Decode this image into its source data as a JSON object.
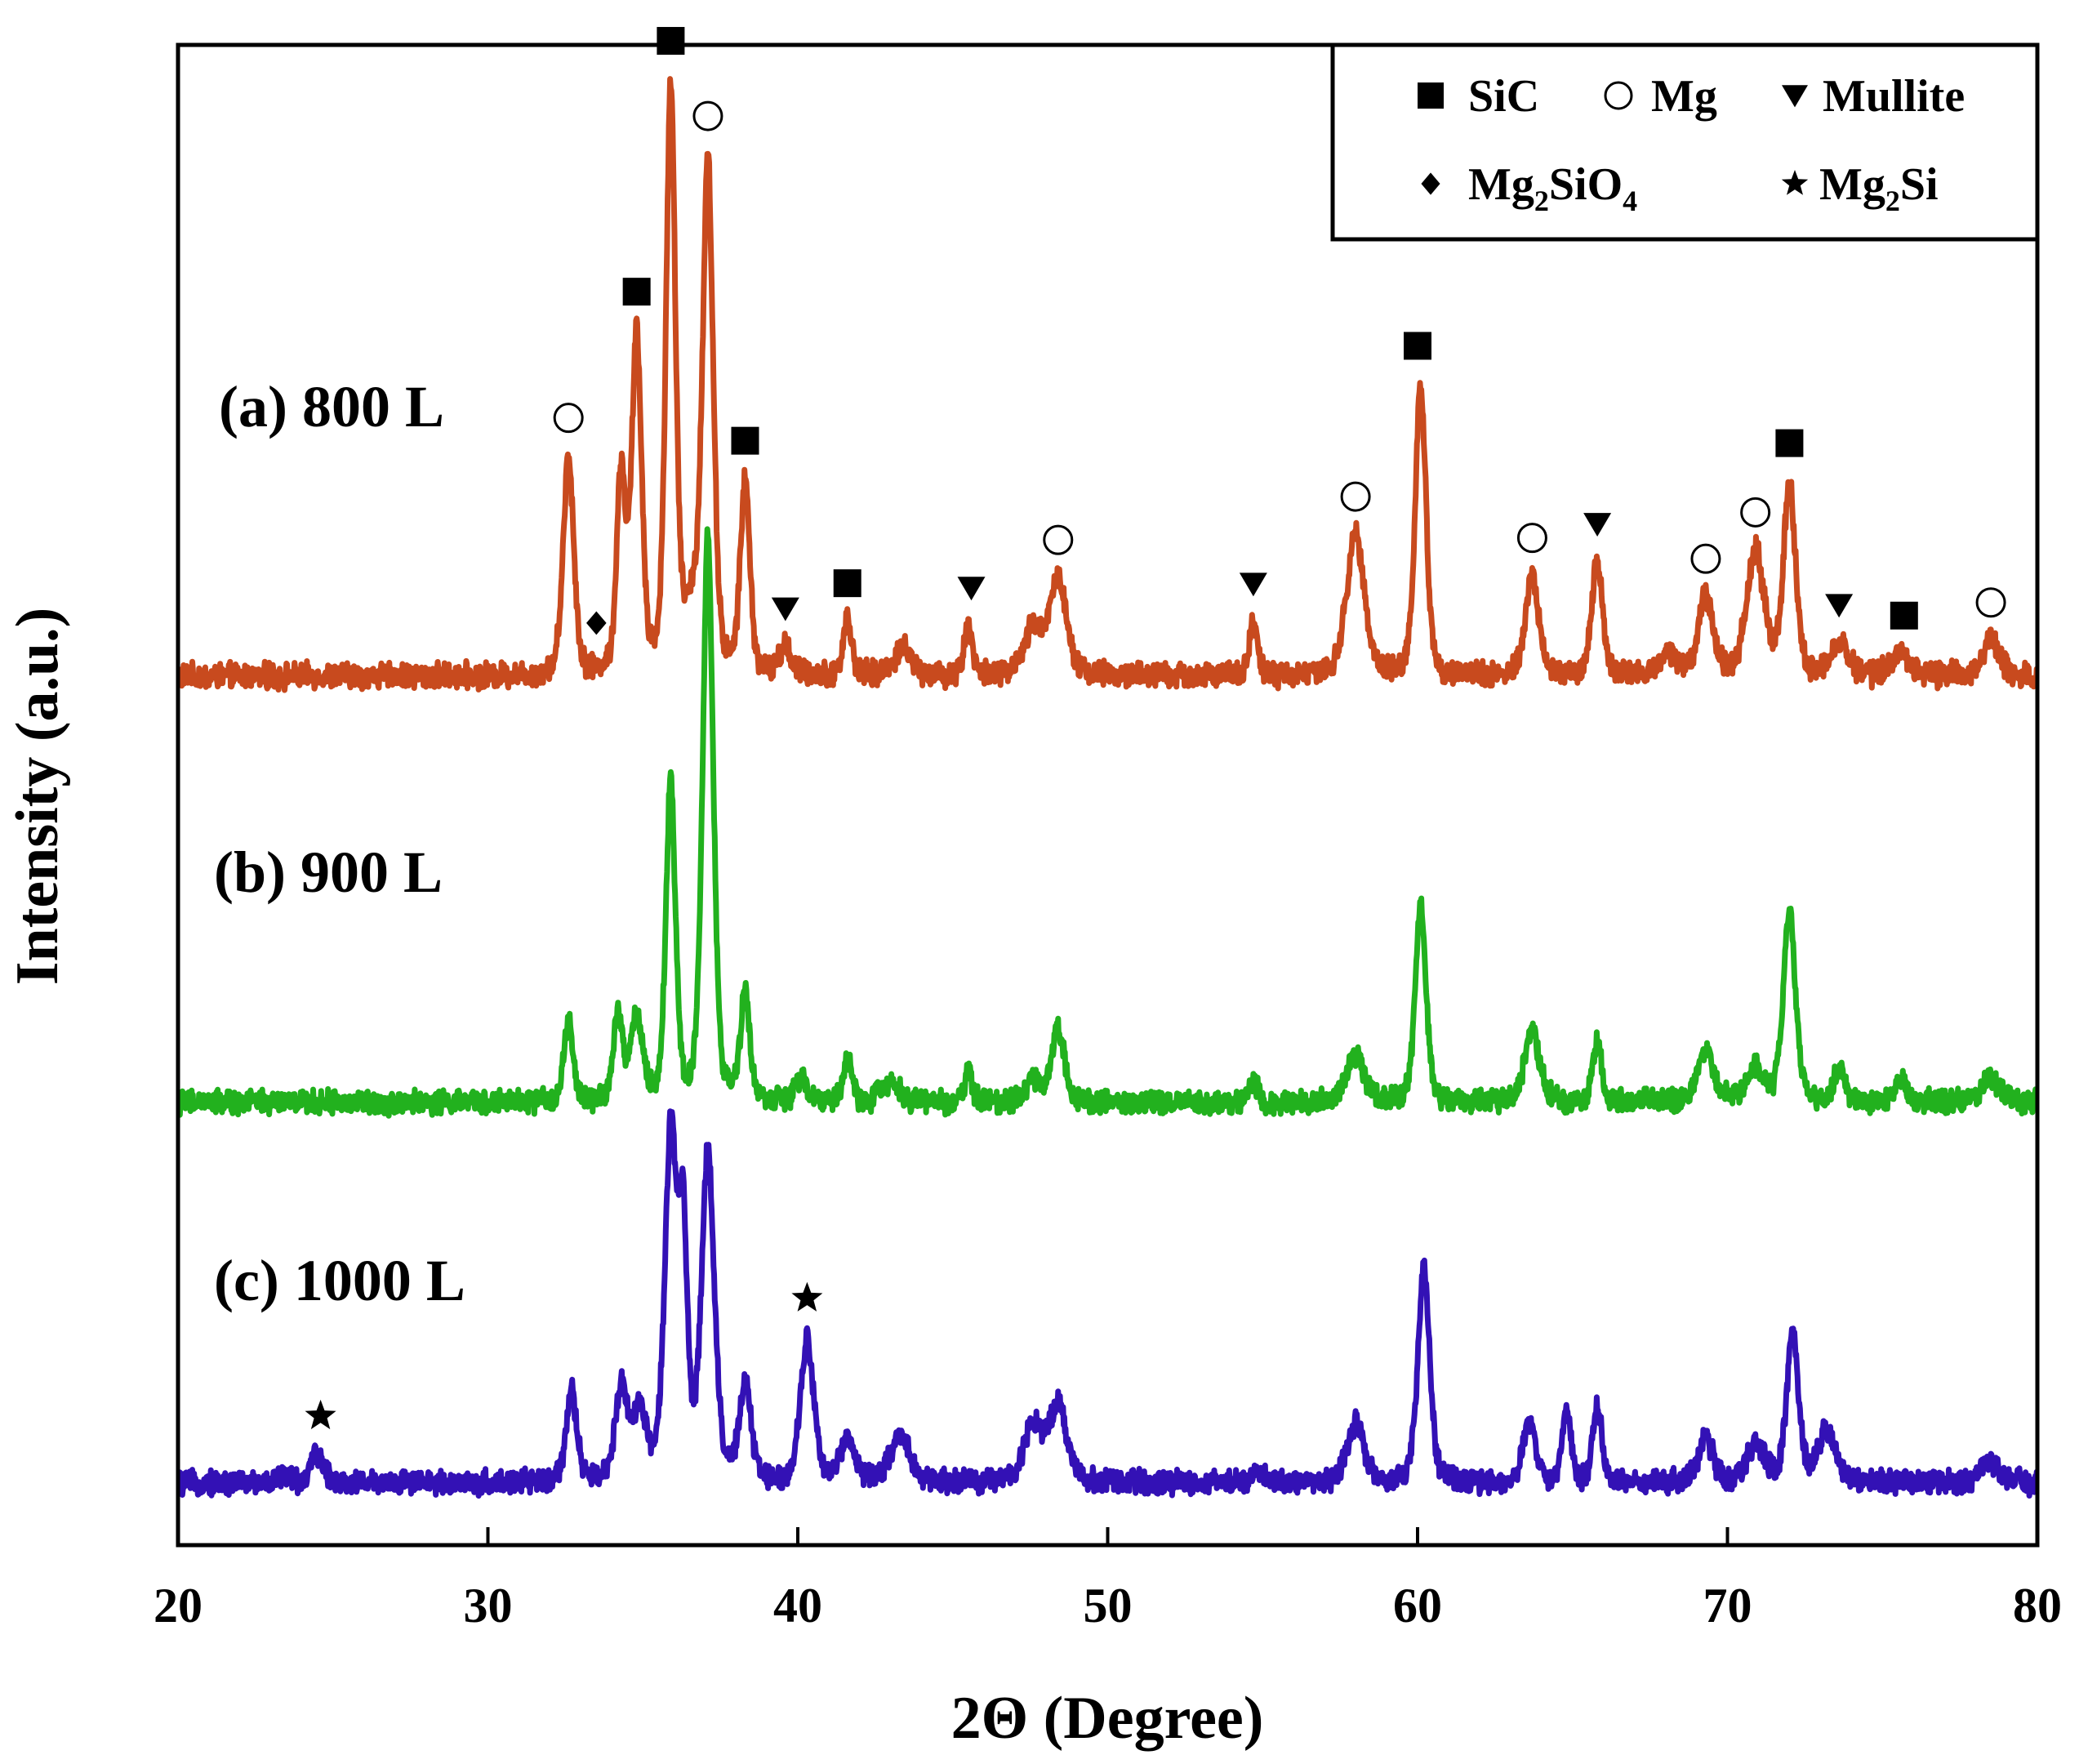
{
  "chart_data": {
    "type": "line",
    "title": "",
    "xlabel": "2Θ (Degree)",
    "ylabel": "Intensity (a.u.)",
    "xlim": [
      20,
      80
    ],
    "xticks": [
      20,
      30,
      40,
      50,
      60,
      70,
      80
    ],
    "yticks": [],
    "grid": false,
    "legend_position": "top-right",
    "legend": [
      {
        "symbol": "filled-square",
        "label": "SiC"
      },
      {
        "symbol": "open-circle",
        "label": "Mg"
      },
      {
        "symbol": "filled-down-triangle",
        "label": "Mullite"
      },
      {
        "symbol": "filled-diamond",
        "label": "Mg",
        "sub": "2",
        "label2": "SiO",
        "sub2": "4"
      },
      {
        "symbol": "filled-star",
        "label": "Mg",
        "sub": "2",
        "label2": "Si"
      }
    ],
    "series": [
      {
        "name": "(a) 800 L",
        "color": "#C84A1E",
        "baseline": 0,
        "peaks": [
          {
            "x": 32.6,
            "h": 0.48,
            "w": 0.18
          },
          {
            "x": 34.3,
            "h": 0.43,
            "w": 0.15
          },
          {
            "x": 34.8,
            "h": 0.73,
            "w": 0.17
          },
          {
            "x": 35.9,
            "h": 1.28,
            "w": 0.16
          },
          {
            "x": 36.6,
            "h": 0.12,
            "w": 0.3
          },
          {
            "x": 37.1,
            "h": 1.1,
            "w": 0.18
          },
          {
            "x": 38.3,
            "h": 0.42,
            "w": 0.16
          },
          {
            "x": 39.6,
            "h": 0.06,
            "w": 0.2
          },
          {
            "x": 41.6,
            "h": 0.12,
            "w": 0.15
          },
          {
            "x": 43.4,
            "h": 0.06,
            "w": 0.3
          },
          {
            "x": 45.5,
            "h": 0.11,
            "w": 0.14
          },
          {
            "x": 47.6,
            "h": 0.1,
            "w": 0.3
          },
          {
            "x": 48.4,
            "h": 0.21,
            "w": 0.3
          },
          {
            "x": 54.7,
            "h": 0.12,
            "w": 0.14
          },
          {
            "x": 58.0,
            "h": 0.31,
            "w": 0.3
          },
          {
            "x": 60.1,
            "h": 0.64,
            "w": 0.18
          },
          {
            "x": 63.7,
            "h": 0.22,
            "w": 0.22
          },
          {
            "x": 65.8,
            "h": 0.25,
            "w": 0.18
          },
          {
            "x": 68.1,
            "h": 0.05,
            "w": 0.3
          },
          {
            "x": 69.3,
            "h": 0.17,
            "w": 0.25
          },
          {
            "x": 70.9,
            "h": 0.27,
            "w": 0.3
          },
          {
            "x": 72.0,
            "h": 0.42,
            "w": 0.2
          },
          {
            "x": 73.6,
            "h": 0.07,
            "w": 0.3
          },
          {
            "x": 75.6,
            "h": 0.05,
            "w": 0.3
          },
          {
            "x": 78.5,
            "h": 0.08,
            "w": 0.3
          }
        ]
      },
      {
        "name": "(b) 900 L",
        "color": "#22B11E",
        "baseline": 0,
        "peaks": [
          {
            "x": 32.6,
            "h": 0.19,
            "w": 0.15
          },
          {
            "x": 34.2,
            "h": 0.2,
            "w": 0.16
          },
          {
            "x": 34.8,
            "h": 0.2,
            "w": 0.2
          },
          {
            "x": 35.9,
            "h": 0.75,
            "w": 0.16
          },
          {
            "x": 37.1,
            "h": 1.33,
            "w": 0.18
          },
          {
            "x": 38.3,
            "h": 0.25,
            "w": 0.16
          },
          {
            "x": 40.1,
            "h": 0.05,
            "w": 0.2
          },
          {
            "x": 41.6,
            "h": 0.1,
            "w": 0.15
          },
          {
            "x": 43.0,
            "h": 0.05,
            "w": 0.3
          },
          {
            "x": 45.5,
            "h": 0.08,
            "w": 0.12
          },
          {
            "x": 47.6,
            "h": 0.05,
            "w": 0.3
          },
          {
            "x": 48.4,
            "h": 0.17,
            "w": 0.22
          },
          {
            "x": 54.7,
            "h": 0.05,
            "w": 0.15
          },
          {
            "x": 58.0,
            "h": 0.11,
            "w": 0.3
          },
          {
            "x": 60.1,
            "h": 0.46,
            "w": 0.18
          },
          {
            "x": 63.7,
            "h": 0.17,
            "w": 0.25
          },
          {
            "x": 65.8,
            "h": 0.14,
            "w": 0.15
          },
          {
            "x": 69.3,
            "h": 0.11,
            "w": 0.3
          },
          {
            "x": 70.9,
            "h": 0.08,
            "w": 0.3
          },
          {
            "x": 72.0,
            "h": 0.45,
            "w": 0.2
          },
          {
            "x": 73.6,
            "h": 0.07,
            "w": 0.2
          },
          {
            "x": 75.6,
            "h": 0.05,
            "w": 0.2
          },
          {
            "x": 78.5,
            "h": 0.06,
            "w": 0.3
          }
        ]
      },
      {
        "name": "(c) 1000 L",
        "color": "#3311B5",
        "baseline": 0,
        "peaks": [
          {
            "x": 23.4,
            "h": 0.02,
            "w": 0.2
          },
          {
            "x": 24.5,
            "h": 0.07,
            "w": 0.2
          },
          {
            "x": 32.7,
            "h": 0.21,
            "w": 0.18
          },
          {
            "x": 34.3,
            "h": 0.22,
            "w": 0.2
          },
          {
            "x": 34.9,
            "h": 0.16,
            "w": 0.25
          },
          {
            "x": 35.9,
            "h": 0.8,
            "w": 0.2
          },
          {
            "x": 36.3,
            "h": 0.55,
            "w": 0.15
          },
          {
            "x": 37.1,
            "h": 0.76,
            "w": 0.22
          },
          {
            "x": 38.3,
            "h": 0.22,
            "w": 0.2
          },
          {
            "x": 40.3,
            "h": 0.34,
            "w": 0.22
          },
          {
            "x": 41.6,
            "h": 0.1,
            "w": 0.25
          },
          {
            "x": 43.3,
            "h": 0.1,
            "w": 0.35
          },
          {
            "x": 47.6,
            "h": 0.14,
            "w": 0.3
          },
          {
            "x": 48.4,
            "h": 0.18,
            "w": 0.3
          },
          {
            "x": 54.8,
            "h": 0.03,
            "w": 0.2
          },
          {
            "x": 58.0,
            "h": 0.14,
            "w": 0.28
          },
          {
            "x": 60.2,
            "h": 0.5,
            "w": 0.2
          },
          {
            "x": 63.6,
            "h": 0.14,
            "w": 0.22
          },
          {
            "x": 64.8,
            "h": 0.17,
            "w": 0.15
          },
          {
            "x": 65.8,
            "h": 0.18,
            "w": 0.15
          },
          {
            "x": 69.3,
            "h": 0.1,
            "w": 0.25
          },
          {
            "x": 70.9,
            "h": 0.09,
            "w": 0.3
          },
          {
            "x": 72.1,
            "h": 0.35,
            "w": 0.2
          },
          {
            "x": 73.2,
            "h": 0.12,
            "w": 0.3
          },
          {
            "x": 78.5,
            "h": 0.05,
            "w": 0.3
          }
        ]
      }
    ],
    "annotations": [
      {
        "series": 0,
        "symbol": "open-circle",
        "x": 32.6
      },
      {
        "series": 0,
        "symbol": "filled-diamond",
        "x": 33.5
      },
      {
        "series": 0,
        "symbol": "filled-square",
        "x": 34.8
      },
      {
        "series": 0,
        "symbol": "filled-square",
        "x": 35.9
      },
      {
        "series": 0,
        "symbol": "open-circle",
        "x": 37.1
      },
      {
        "series": 0,
        "symbol": "filled-square",
        "x": 38.3
      },
      {
        "series": 0,
        "symbol": "filled-down-triangle",
        "x": 39.6
      },
      {
        "series": 0,
        "symbol": "filled-square",
        "x": 41.6
      },
      {
        "series": 0,
        "symbol": "filled-down-triangle",
        "x": 45.6
      },
      {
        "series": 0,
        "symbol": "open-circle",
        "x": 48.4
      },
      {
        "series": 0,
        "symbol": "filled-down-triangle",
        "x": 54.7
      },
      {
        "series": 0,
        "symbol": "open-circle",
        "x": 58.0
      },
      {
        "series": 0,
        "symbol": "filled-square",
        "x": 60.0
      },
      {
        "series": 0,
        "symbol": "open-circle",
        "x": 63.7
      },
      {
        "series": 0,
        "symbol": "filled-down-triangle",
        "x": 65.8
      },
      {
        "series": 0,
        "symbol": "open-circle",
        "x": 69.3
      },
      {
        "series": 0,
        "symbol": "open-circle",
        "x": 70.9
      },
      {
        "series": 0,
        "symbol": "filled-square",
        "x": 72.0
      },
      {
        "series": 0,
        "symbol": "filled-down-triangle",
        "x": 73.6
      },
      {
        "series": 0,
        "symbol": "filled-square",
        "x": 75.7
      },
      {
        "series": 0,
        "symbol": "open-circle",
        "x": 78.5
      },
      {
        "series": 2,
        "symbol": "filled-star",
        "x": 24.6
      },
      {
        "series": 2,
        "symbol": "filled-star",
        "x": 40.3
      }
    ]
  }
}
